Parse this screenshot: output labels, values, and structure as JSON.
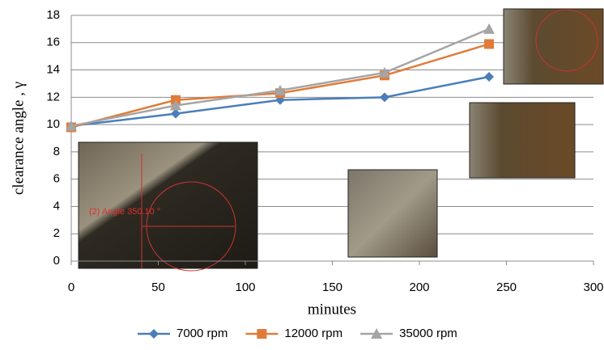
{
  "chart_data": {
    "type": "line",
    "x_label": "minutes",
    "y_label": "clearance angle , γ",
    "x": [
      0,
      60,
      120,
      180,
      240
    ],
    "series": [
      {
        "name": "7000 rpm",
        "color": "#4a7ebb",
        "marker": "diamond",
        "values": [
          9.9,
          10.8,
          11.8,
          12.0,
          13.5
        ]
      },
      {
        "name": "12000 rpm",
        "color": "#e07b39",
        "marker": "square",
        "values": [
          9.8,
          11.8,
          12.3,
          13.6,
          15.9
        ]
      },
      {
        "name": "35000 rpm",
        "color": "#a5a5a5",
        "marker": "triangle",
        "values": [
          9.9,
          11.4,
          12.5,
          13.8,
          17.0
        ]
      }
    ],
    "xlim": [
      0,
      300
    ],
    "xticks": [
      0,
      50,
      100,
      150,
      200,
      250,
      300
    ],
    "ylim": [
      0,
      18
    ],
    "yticks": [
      0,
      2,
      4,
      6,
      8,
      10,
      12,
      14,
      16,
      18
    ],
    "grid": true,
    "legend": "bottom",
    "annotations": [
      "(2) Angle 350.10 °"
    ]
  }
}
